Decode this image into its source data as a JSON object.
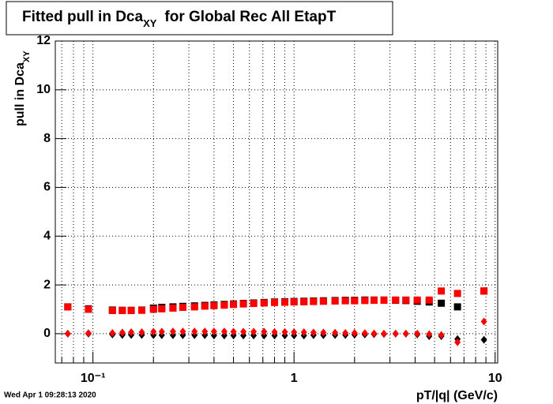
{
  "chart_data": {
    "type": "scatter",
    "title": {
      "main": "Fitted pull in Dca",
      "sub": "XY",
      "rest": "for Global Rec All EtapT"
    },
    "y_label": {
      "main": "pull in Dca",
      "sub": "XY"
    },
    "x_label": "pT/|q| (GeV/c)",
    "timestamp": "Wed Apr  1 09:28:13 2020",
    "x_scale": "log",
    "grid": true,
    "xlim": [
      0.065,
      10.3
    ],
    "ylim": [
      -1.2,
      12
    ],
    "xticks": [
      {
        "value": 0.1,
        "label": "10⁻¹"
      },
      1,
      10
    ],
    "xminorticks": [
      0.07,
      0.08,
      0.09,
      0.2,
      0.3,
      0.4,
      0.5,
      0.6,
      0.7,
      0.8,
      0.9,
      2,
      3,
      4,
      5,
      6,
      7,
      8,
      9
    ],
    "yticks": [
      0,
      2,
      4,
      6,
      8,
      10,
      12
    ],
    "x": [
      0.075,
      0.095,
      0.125,
      0.14,
      0.155,
      0.175,
      0.2,
      0.22,
      0.25,
      0.28,
      0.32,
      0.36,
      0.4,
      0.45,
      0.5,
      0.56,
      0.63,
      0.71,
      0.8,
      0.9,
      1.0,
      1.12,
      1.25,
      1.4,
      1.6,
      1.8,
      2.0,
      2.25,
      2.5,
      2.8,
      3.2,
      3.6,
      4.1,
      4.7,
      5.4,
      6.5,
      8.8
    ],
    "series": [
      {
        "color": "#000000",
        "marker": "square",
        "values": [
          1.1,
          1.02,
          0.97,
          0.96,
          0.96,
          0.97,
          1.05,
          1.08,
          1.1,
          1.12,
          1.14,
          1.16,
          1.18,
          1.2,
          1.22,
          1.24,
          1.26,
          1.28,
          1.3,
          1.31,
          1.32,
          1.33,
          1.34,
          1.35,
          1.36,
          1.37,
          1.37,
          1.38,
          1.38,
          1.38,
          1.37,
          1.36,
          1.33,
          1.3,
          1.25,
          1.1,
          1.75
        ]
      },
      {
        "color": "#000000",
        "marker": "diamond",
        "values": [
          0.0,
          0.0,
          -0.03,
          -0.05,
          -0.05,
          -0.05,
          -0.06,
          -0.06,
          -0.06,
          -0.06,
          -0.06,
          -0.06,
          -0.07,
          -0.07,
          -0.07,
          -0.07,
          -0.07,
          -0.07,
          -0.07,
          -0.07,
          -0.07,
          -0.07,
          -0.06,
          -0.06,
          -0.05,
          -0.05,
          -0.04,
          -0.03,
          -0.02,
          -0.01,
          0.0,
          0.0,
          -0.03,
          -0.1,
          -0.1,
          -0.22,
          -0.25
        ]
      },
      {
        "color": "#ff0000",
        "marker": "square",
        "values": [
          1.1,
          1.0,
          0.95,
          0.95,
          0.95,
          0.96,
          1.0,
          1.02,
          1.05,
          1.08,
          1.1,
          1.13,
          1.15,
          1.17,
          1.2,
          1.22,
          1.24,
          1.26,
          1.28,
          1.29,
          1.3,
          1.31,
          1.32,
          1.33,
          1.34,
          1.35,
          1.35,
          1.36,
          1.37,
          1.37,
          1.38,
          1.38,
          1.38,
          1.38,
          1.75,
          1.65,
          1.75
        ]
      },
      {
        "color": "#ff0000",
        "marker": "diamond",
        "values": [
          0.0,
          0.02,
          0.03,
          0.05,
          0.06,
          0.06,
          0.08,
          0.08,
          0.09,
          0.09,
          0.09,
          0.09,
          0.09,
          0.09,
          0.08,
          0.08,
          0.08,
          0.08,
          0.07,
          0.07,
          0.06,
          0.06,
          0.05,
          0.05,
          0.04,
          0.03,
          0.03,
          0.02,
          0.01,
          0.0,
          0.0,
          0.0,
          0.0,
          -0.02,
          -0.05,
          -0.35,
          0.5
        ]
      }
    ]
  }
}
